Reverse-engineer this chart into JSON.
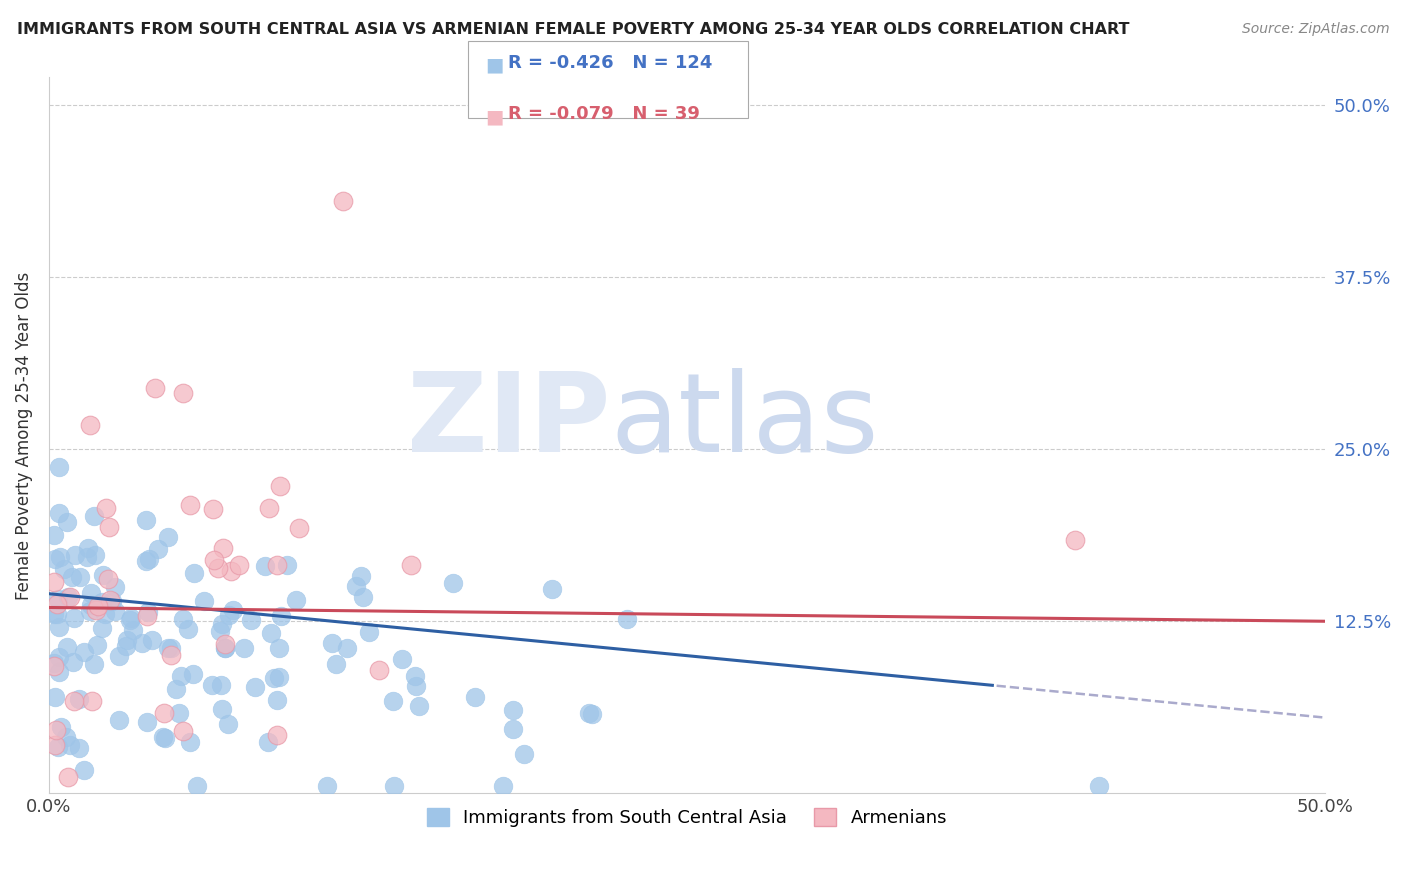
{
  "title": "IMMIGRANTS FROM SOUTH CENTRAL ASIA VS ARMENIAN FEMALE POVERTY AMONG 25-34 YEAR OLDS CORRELATION CHART",
  "source": "Source: ZipAtlas.com",
  "ylabel": "Female Poverty Among 25-34 Year Olds",
  "xlim": [
    0.0,
    0.5
  ],
  "ylim": [
    0.0,
    0.52
  ],
  "ytick_positions": [
    0.125,
    0.25,
    0.375,
    0.5
  ],
  "ytick_labels": [
    "12.5%",
    "25.0%",
    "37.5%",
    "50.0%"
  ],
  "r_blue": -0.426,
  "n_blue": 124,
  "r_pink": -0.079,
  "n_pink": 39,
  "blue_color": "#4472c4",
  "pink_color": "#d75f6e",
  "scatter_blue_color": "#9fc5e8",
  "scatter_pink_color": "#f4b8c1",
  "trend_blue_color": "#2e5fa3",
  "trend_pink_color": "#c94a5a",
  "trend_dashed_color": "#aaaacc",
  "legend_blue_label": "Immigrants from South Central Asia",
  "legend_pink_label": "Armenians",
  "blue_seed": 77,
  "pink_seed": 55
}
